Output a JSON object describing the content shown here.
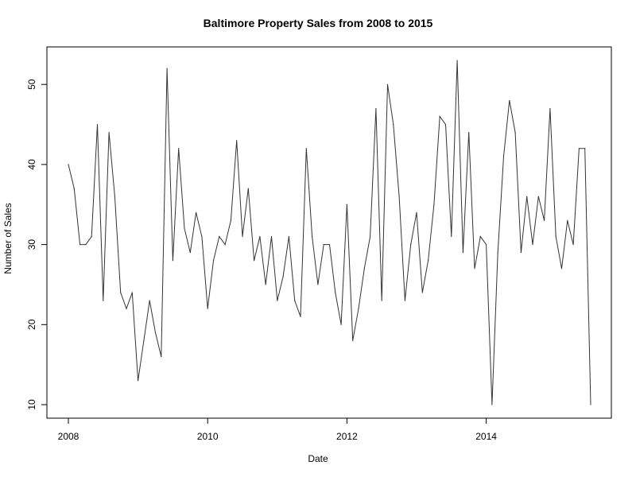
{
  "chart_data": {
    "type": "line",
    "title": "Baltimore Property Sales from 2008 to 2015",
    "xlabel": "Date",
    "ylabel": "Number of Sales",
    "x_start": "2008-01",
    "x_interval": "month",
    "xlim": [
      2008.0,
      2015.5
    ],
    "ylim": [
      10,
      53
    ],
    "x_ticks": [
      "2008",
      "2010",
      "2012",
      "2014"
    ],
    "y_ticks": [
      "10",
      "20",
      "30",
      "40",
      "50"
    ],
    "grid": false,
    "series": [
      {
        "values": [
          40,
          37,
          30,
          30,
          31,
          45,
          23,
          44,
          36,
          24,
          22,
          24,
          13,
          18,
          23,
          19,
          16,
          52,
          28,
          42,
          32,
          29,
          34,
          31,
          22,
          28,
          31,
          30,
          33,
          43,
          31,
          37,
          28,
          31,
          25,
          31,
          23,
          26,
          31,
          23,
          21,
          42,
          31,
          25,
          30,
          30,
          24,
          20,
          35,
          18,
          22,
          27,
          31,
          47,
          23,
          50,
          45,
          36,
          23,
          30,
          34,
          24,
          28,
          35,
          46,
          45,
          31,
          53,
          29,
          44,
          27,
          31,
          30,
          10,
          29,
          41,
          48,
          44,
          29,
          36,
          30,
          36,
          33,
          47,
          31,
          27,
          33,
          30,
          42,
          42,
          10
        ],
        "color": "#333333"
      }
    ]
  }
}
